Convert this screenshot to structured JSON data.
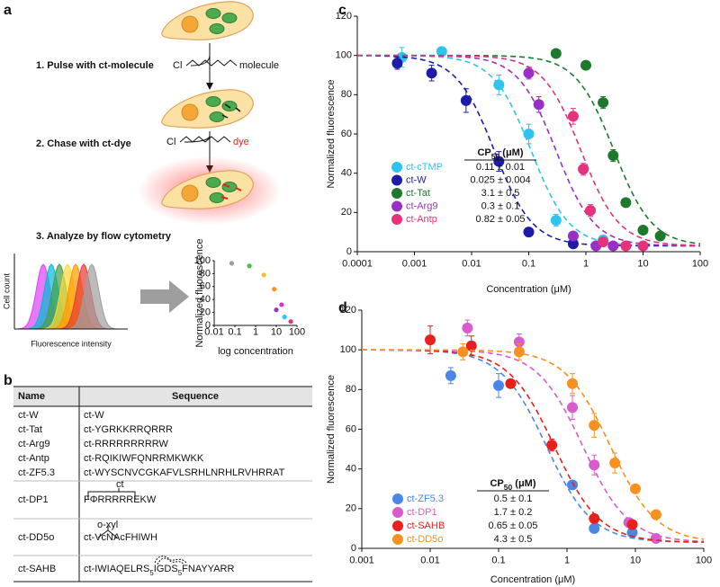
{
  "panel_a": {
    "label": "a",
    "steps": [
      "1. Pulse with ct-molecule",
      "2. Chase with ct-dye",
      "3. Analyze by flow cytometry"
    ],
    "reagents": [
      {
        "group": "Cl",
        "tail": "molecule"
      },
      {
        "group": "Cl",
        "tail": "dye"
      }
    ],
    "histogram": {
      "xlabel": "Fluorescence intensity",
      "ylabel": "Cell count"
    }
  },
  "panel_b": {
    "label": "b",
    "table": {
      "header": [
        "Name",
        "Sequence"
      ],
      "rows": [
        [
          "ct-W",
          "ct-W"
        ],
        [
          "ct-Tat",
          "ct-YGRKKRRQRRR"
        ],
        [
          "ct-Arg9",
          "ct-RRRRRRRRRW"
        ],
        [
          "ct-Antp",
          "ct-RQIKIWFQNRRMKWKK"
        ],
        [
          "ct-ZF5.3",
          "ct-WYSCNVCGKAFVLSRHLNRHLRVHRRAT"
        ],
        [
          "ct-DP1",
          {
            "sequence": "FΦRRRRREKW",
            "annotation": "ct"
          }
        ],
        [
          "ct-DD5o",
          {
            "sequence": "ct-VcNAcFHIWH",
            "annotation": "o-xyl"
          }
        ],
        [
          "ct-SAHB",
          {
            "parts": [
              "ct-IWIAQELRS",
              "5",
              "IGDS",
              "5",
              "FNAYYARR"
            ]
          }
        ]
      ]
    }
  },
  "panel_c": {
    "label": "c"
  },
  "panel_d": {
    "label": "d"
  },
  "chart_data": [
    {
      "type": "scatter",
      "xlabel": "log concentration",
      "ylabel": "Normalized fluorescence",
      "xscale": "log",
      "xlim": [
        0.01,
        100
      ],
      "xticks": [
        0.01,
        0.1,
        1,
        10,
        100
      ],
      "ylim": [
        0,
        100
      ],
      "yticks": [
        0,
        20,
        40,
        60,
        80,
        100
      ],
      "x": [
        0.07,
        0.5,
        2.5,
        8,
        18,
        10,
        25,
        50
      ],
      "values": [
        96,
        92,
        78,
        56,
        32,
        24,
        13,
        6
      ],
      "colors": [
        "#9e9e9e",
        "#43c443",
        "#f2c12e",
        "#f7901e",
        "#e02fd0",
        "#9a2fc6",
        "#2fc3ee",
        "#e6317b"
      ]
    },
    {
      "type": "scatter",
      "xlabel": "Concentration (μM)",
      "ylabel": "Normalized fluorescence",
      "xscale": "log",
      "xlim": [
        0.0001,
        100
      ],
      "xticks": [
        0.0001,
        0.001,
        0.01,
        0.1,
        1,
        10,
        100
      ],
      "ylim": [
        0,
        120
      ],
      "yticks": [
        0,
        20,
        40,
        60,
        80,
        100,
        120
      ],
      "legend_title": {
        "text": "CP",
        "subscript": "50",
        "suffix": " (μM)"
      },
      "series": [
        {
          "name": "ct-cTMP",
          "color": "#2fc3ee",
          "x": [
            0.0006,
            0.003,
            0.03,
            0.1,
            0.3,
            2
          ],
          "values": [
            99,
            102,
            85,
            60,
            16,
            6
          ],
          "errors": [
            5,
            2,
            5,
            5,
            3,
            2
          ],
          "cp50": 0.11,
          "cp50_label": "0.11 ± 0.01"
        },
        {
          "name": "ct-W",
          "color": "#1c1ca8",
          "x": [
            0.0005,
            0.002,
            0.008,
            0.03,
            0.1,
            0.6
          ],
          "values": [
            96,
            91,
            77,
            46,
            10,
            4
          ],
          "errors": [
            3,
            4,
            6,
            5,
            2,
            1
          ],
          "cp50": 0.025,
          "cp50_label": "0.025 ± 0.004"
        },
        {
          "name": "ct-Tat",
          "color": "#1d7a2c",
          "x": [
            0.3,
            1,
            2,
            3,
            5,
            10,
            20
          ],
          "values": [
            101,
            95,
            76,
            49,
            25,
            11,
            8
          ],
          "errors": [
            2,
            2,
            3,
            3,
            2,
            2,
            2
          ],
          "cp50": 3.1,
          "cp50_label": "3.1 ± 0.5"
        },
        {
          "name": "ct-Arg9",
          "color": "#9a2fc6",
          "x": [
            0.1,
            0.15,
            0.6,
            1.5,
            3
          ],
          "values": [
            91,
            75,
            8,
            3,
            3
          ],
          "errors": [
            3,
            4,
            2,
            1,
            1
          ],
          "cp50": 0.3,
          "cp50_label": "0.3 ± 0.1"
        },
        {
          "name": "ct-Antp",
          "color": "#e6317b",
          "x": [
            0.6,
            0.9,
            1.2,
            2,
            5,
            10
          ],
          "values": [
            69,
            42,
            21,
            5,
            3,
            3
          ],
          "errors": [
            4,
            3,
            3,
            1,
            1,
            1
          ],
          "cp50": 0.82,
          "cp50_label": "0.82 ± 0.05"
        }
      ]
    },
    {
      "type": "scatter",
      "xlabel": "Concentration (μM)",
      "ylabel": "Normalized fluorescence",
      "xscale": "log",
      "xlim": [
        0.001,
        100
      ],
      "xticks": [
        0.001,
        0.01,
        0.1,
        1,
        10,
        100
      ],
      "ylim": [
        0,
        120
      ],
      "yticks": [
        0,
        20,
        40,
        60,
        80,
        100,
        120
      ],
      "legend_title": {
        "text": "CP",
        "subscript": "50",
        "suffix": " (μM)"
      },
      "series": [
        {
          "name": "ct-ZF5.3",
          "color": "#4a86e8",
          "x": [
            0.02,
            0.1,
            1.2,
            2.5,
            9
          ],
          "values": [
            87,
            82,
            32,
            10,
            8
          ],
          "errors": [
            4,
            6,
            2,
            2,
            2
          ],
          "cp50": 0.5,
          "cp50_label": "0.5 ± 0.1"
        },
        {
          "name": "ct-DP1",
          "color": "#d95ccc",
          "x": [
            0.035,
            0.2,
            1.2,
            2.5,
            8,
            20
          ],
          "values": [
            111,
            104,
            71,
            42,
            13,
            5
          ],
          "errors": [
            4,
            4,
            6,
            5,
            2,
            2
          ],
          "cp50": 1.7,
          "cp50_label": "1.7 ± 0.2"
        },
        {
          "name": "ct-SAHB",
          "color": "#e8201c",
          "x": [
            0.01,
            0.04,
            0.15,
            0.6,
            2.5,
            9
          ],
          "values": [
            105,
            102,
            83,
            52,
            15,
            12
          ],
          "errors": [
            7,
            5,
            2,
            3,
            2,
            2
          ],
          "cp50": 0.65,
          "cp50_label": "0.65 ± 0.05"
        },
        {
          "name": "ct-DD5o",
          "color": "#f7901e",
          "x": [
            0.03,
            0.2,
            1.2,
            2.5,
            5,
            10,
            20
          ],
          "values": [
            99,
            99,
            83,
            62,
            43,
            30,
            17
          ],
          "errors": [
            4,
            4,
            5,
            6,
            5,
            2,
            2
          ],
          "cp50": 4.3,
          "cp50_label": "4.3 ± 0.5"
        }
      ]
    }
  ]
}
